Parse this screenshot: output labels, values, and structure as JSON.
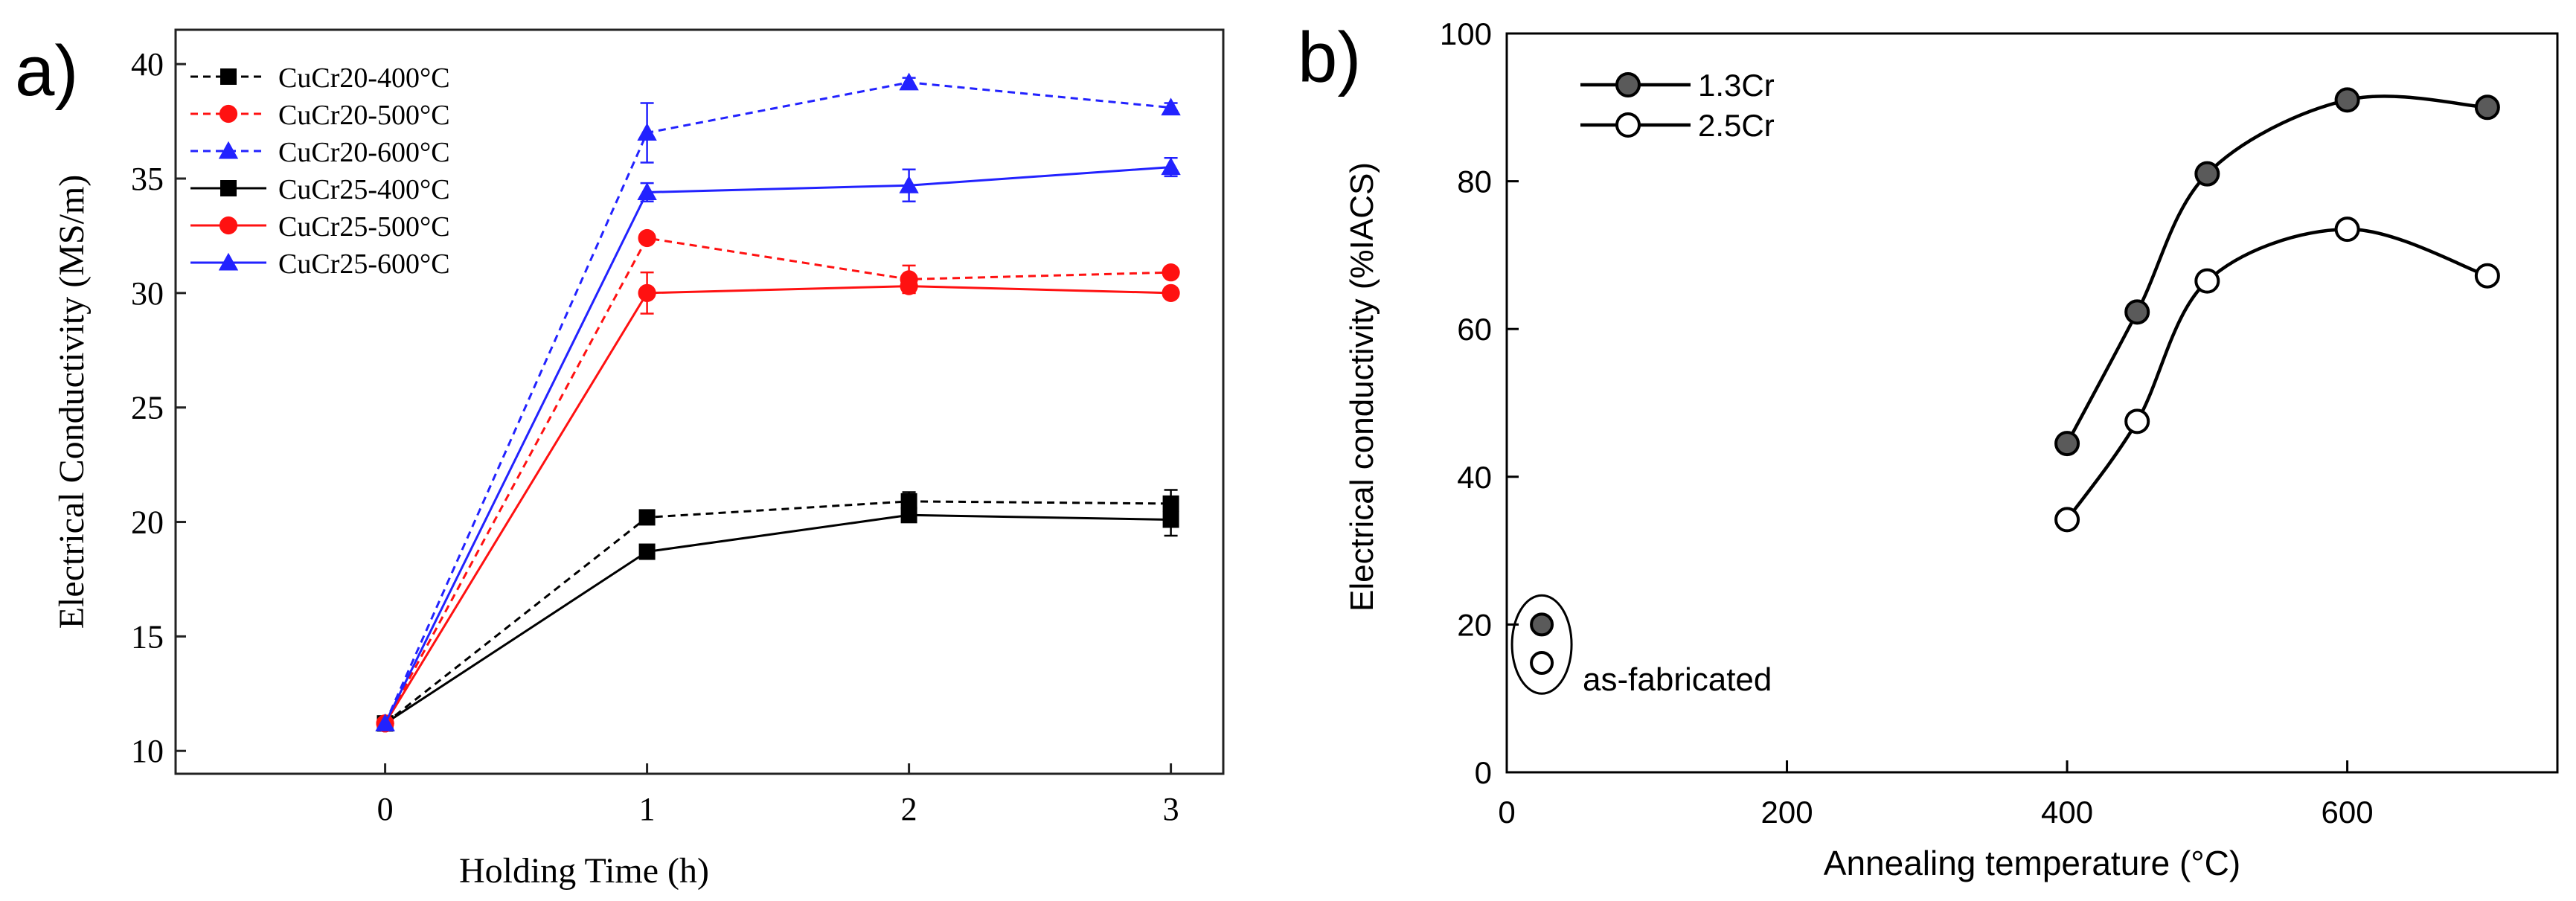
{
  "chart_data": [
    {
      "panel_label": "a)",
      "type": "line",
      "xlabel": "Holding Time (h)",
      "ylabel": "Electrical Conductivity (MS/m)",
      "xlim": [
        -0.8,
        3.2
      ],
      "ylim": [
        9,
        41.5
      ],
      "xticks": [
        "0",
        "1",
        "2",
        "3"
      ],
      "yticks": [
        "10",
        "15",
        "20",
        "25",
        "30",
        "35",
        "40"
      ],
      "legend_position": "top-left",
      "x": [
        0,
        1,
        2,
        3
      ],
      "series": [
        {
          "name": "CuCr20-400°C",
          "color": "#000000",
          "marker": "square",
          "dashed": true,
          "values": [
            11.2,
            20.2,
            20.9,
            20.8
          ],
          "errors": [
            0,
            0.2,
            0.4,
            0.6
          ]
        },
        {
          "name": "CuCr20-500°C",
          "color": "#ff1111",
          "marker": "circle",
          "dashed": true,
          "values": [
            11.2,
            32.4,
            30.6,
            30.9
          ],
          "errors": [
            0,
            0.2,
            0.6,
            0.2
          ]
        },
        {
          "name": "CuCr20-600°C",
          "color": "#2222ff",
          "marker": "triangle",
          "dashed": true,
          "values": [
            11.2,
            37.0,
            39.2,
            38.1
          ],
          "errors": [
            0,
            1.3,
            0.2,
            0.2
          ]
        },
        {
          "name": "CuCr25-400°C",
          "color": "#000000",
          "marker": "square",
          "dashed": false,
          "values": [
            11.2,
            18.7,
            20.3,
            20.1
          ],
          "errors": [
            0,
            0.2,
            0.3,
            0.7
          ]
        },
        {
          "name": "CuCr25-500°C",
          "color": "#ff1111",
          "marker": "circle",
          "dashed": false,
          "values": [
            11.2,
            30.0,
            30.3,
            30.0
          ],
          "errors": [
            0,
            0.9,
            0.3,
            0.2
          ]
        },
        {
          "name": "CuCr25-600°C",
          "color": "#2222ff",
          "marker": "triangle",
          "dashed": false,
          "values": [
            11.2,
            34.4,
            34.7,
            35.5
          ],
          "errors": [
            0,
            0.4,
            0.7,
            0.4
          ]
        }
      ]
    },
    {
      "panel_label": "b)",
      "type": "line",
      "xlabel": "Annealing temperature (°C)",
      "ylabel": "Electrical conductivity (%IACS)",
      "xlim": [
        0,
        750
      ],
      "ylim": [
        0,
        100
      ],
      "xticks": [
        "0",
        "200",
        "400",
        "600"
      ],
      "yticks": [
        "0",
        "20",
        "40",
        "60",
        "80",
        "100"
      ],
      "legend_position": "top-left",
      "annotation": "as-fabricated",
      "series": [
        {
          "name": "1.3Cr",
          "fill": "#5a5a5a",
          "x": [
            400,
            450,
            500,
            600,
            700
          ],
          "values": [
            44.5,
            62.3,
            81.0,
            91.0,
            90.0
          ],
          "as_fabricated": {
            "x": 25,
            "value": 20.0
          }
        },
        {
          "name": "2.5Cr",
          "fill": "#ffffff",
          "x": [
            400,
            450,
            500,
            600,
            700
          ],
          "values": [
            34.2,
            47.5,
            66.5,
            73.5,
            67.2
          ],
          "as_fabricated": {
            "x": 25,
            "value": 14.8
          }
        }
      ]
    }
  ]
}
